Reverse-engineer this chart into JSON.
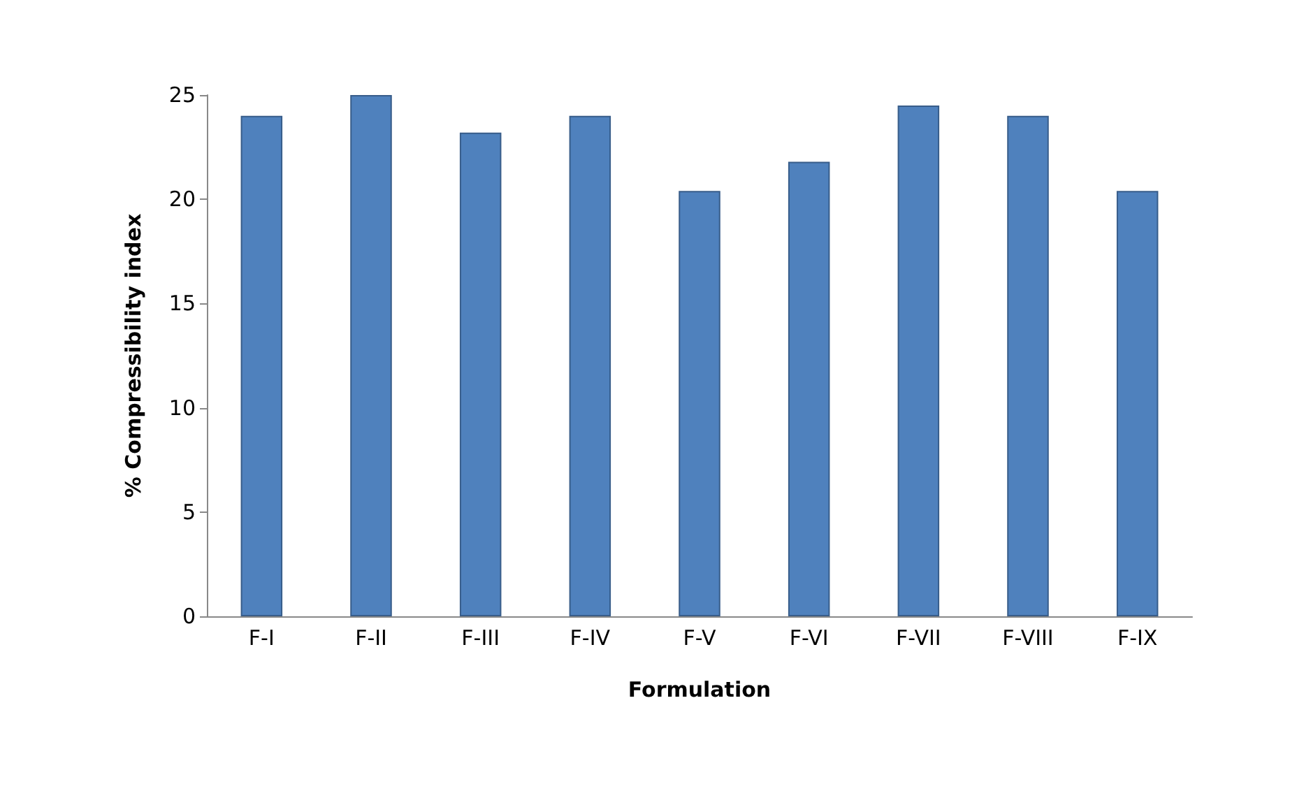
{
  "chart_data": {
    "type": "bar",
    "xlabel": "Formulation",
    "ylabel": "% Compressibility index",
    "categories": [
      "F-I",
      "F-II",
      "F-III",
      "F-IV",
      "F-V",
      "F-VI",
      "F-VII",
      "F-VIII",
      "F-IX"
    ],
    "values": [
      24,
      25,
      23.2,
      24,
      20.4,
      21.8,
      24.5,
      24,
      20.4
    ],
    "color": "#4f81bd",
    "ylim": [
      0,
      25
    ],
    "yticks": [
      0,
      5,
      10,
      15,
      20,
      25
    ],
    "grid": false
  }
}
